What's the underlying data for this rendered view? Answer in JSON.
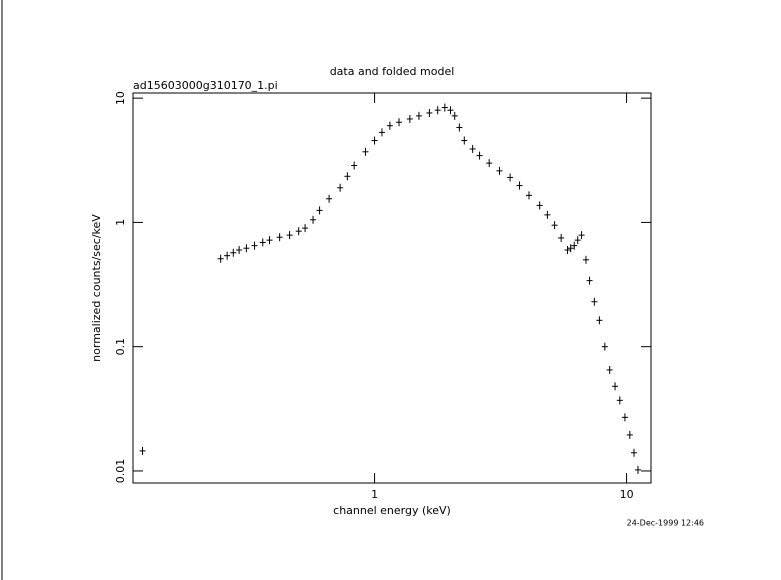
{
  "chart_data": {
    "type": "scatter",
    "title": "data and folded model",
    "subtitle": "ad15603000g310170_1.pi",
    "x_label": "channel energy (keV)",
    "y_label": "normalized counts/sec/keV",
    "annotation": "24-Dec-1999 12:46",
    "log_x": true,
    "log_y": true,
    "color": "#000000",
    "xlim": [
      0.11,
      12.5
    ],
    "ylim": [
      0.008,
      11
    ],
    "xticks": [
      1,
      10
    ],
    "yticks": [
      0.01,
      0.1,
      1,
      10
    ],
    "series": [
      {
        "name": "data",
        "x": [
          0.12,
          0.245,
          0.26,
          0.275,
          0.29,
          0.31,
          0.334,
          0.36,
          0.383,
          0.42,
          0.46,
          0.5,
          0.53,
          0.57,
          0.605,
          0.66,
          0.73,
          0.78,
          0.83,
          0.92,
          1.0,
          1.07,
          1.15,
          1.25,
          1.38,
          1.5,
          1.65,
          1.78,
          1.9,
          2.0,
          2.08,
          2.17,
          2.27,
          2.45,
          2.61,
          2.85,
          3.13,
          3.45,
          3.76,
          4.1,
          4.52,
          4.85,
          5.18,
          5.5,
          5.83,
          6.0,
          6.2,
          6.4,
          6.63,
          6.9,
          7.13,
          7.45,
          7.8,
          8.2,
          8.57,
          9.0,
          9.4,
          9.85,
          10.3,
          10.7,
          11.1
        ],
        "values": [
          0.0145,
          0.51,
          0.54,
          0.57,
          0.6,
          0.62,
          0.65,
          0.69,
          0.72,
          0.76,
          0.79,
          0.85,
          0.9,
          1.05,
          1.25,
          1.55,
          1.9,
          2.35,
          2.87,
          3.7,
          4.56,
          5.3,
          6.0,
          6.4,
          6.8,
          7.2,
          7.6,
          8.0,
          8.4,
          8.0,
          7.2,
          5.8,
          4.56,
          3.9,
          3.45,
          3.0,
          2.6,
          2.3,
          1.98,
          1.65,
          1.37,
          1.15,
          0.95,
          0.75,
          0.6,
          0.62,
          0.65,
          0.72,
          0.79,
          0.5,
          0.34,
          0.23,
          0.163,
          0.1,
          0.065,
          0.048,
          0.037,
          0.027,
          0.0195,
          0.014,
          0.0102
        ]
      }
    ]
  }
}
